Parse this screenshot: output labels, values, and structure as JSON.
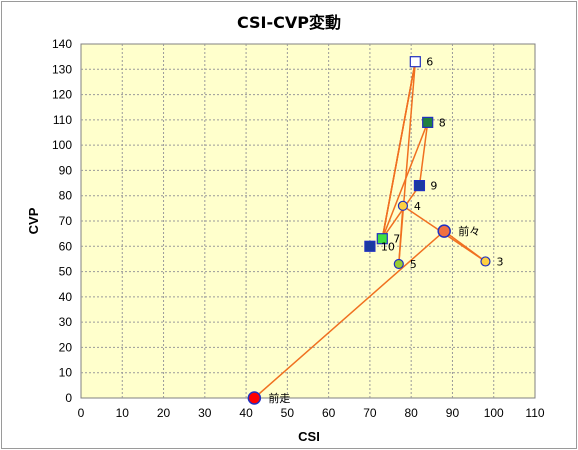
{
  "chart_data": {
    "type": "scatter",
    "title": "CSI-CVP変動",
    "xlabel": "CSI",
    "ylabel": "CVP",
    "xlim": [
      0,
      110
    ],
    "ylim": [
      0,
      140
    ],
    "x_ticks": [
      0,
      10,
      20,
      30,
      40,
      50,
      60,
      70,
      80,
      90,
      100,
      110
    ],
    "y_ticks": [
      0,
      10,
      20,
      30,
      40,
      50,
      60,
      70,
      80,
      90,
      100,
      110,
      120,
      130,
      140
    ],
    "grid": true,
    "plot_background": "#ffffcc",
    "line_color": "#f07020",
    "points": [
      {
        "label": "前走",
        "x": 42,
        "y": 0,
        "marker": "circle-large",
        "fill": "#ff0000",
        "stroke": "#2030c0"
      },
      {
        "label": "前々",
        "x": 88,
        "y": 66,
        "marker": "circle-large",
        "fill": "#f07040",
        "stroke": "#2030c0"
      },
      {
        "label": "3",
        "x": 98,
        "y": 54,
        "marker": "circle",
        "fill": "#ffd040",
        "stroke": "#2030c0"
      },
      {
        "label": "4",
        "x": 78,
        "y": 76,
        "marker": "circle",
        "fill": "#ffd040",
        "stroke": "#2030c0"
      },
      {
        "label": "5",
        "x": 77,
        "y": 53,
        "marker": "circle",
        "fill": "#9acd32",
        "stroke": "#2030c0"
      },
      {
        "label": "6",
        "x": 81,
        "y": 133,
        "marker": "square",
        "fill": "#ffffff",
        "stroke": "#2030c0"
      },
      {
        "label": "7",
        "x": 73,
        "y": 63,
        "marker": "square",
        "fill": "#40e040",
        "stroke": "#2030c0"
      },
      {
        "label": "8",
        "x": 84,
        "y": 109,
        "marker": "square",
        "fill": "#208040",
        "stroke": "#2030c0"
      },
      {
        "label": "9",
        "x": 82,
        "y": 84,
        "marker": "square",
        "fill": "#1a3aa0",
        "stroke": "#2030c0"
      },
      {
        "label": "10",
        "x": 70,
        "y": 60,
        "marker": "square",
        "fill": "#1a3aa0",
        "stroke": "#2030c0"
      }
    ],
    "path": [
      [
        42,
        0
      ],
      [
        88,
        66
      ],
      [
        98,
        54
      ],
      [
        78,
        76
      ],
      [
        77,
        53
      ],
      [
        81,
        133
      ],
      [
        73,
        63
      ],
      [
        84,
        109
      ],
      [
        82,
        84
      ],
      [
        73,
        63
      ],
      [
        81,
        133
      ],
      [
        73,
        63
      ]
    ]
  }
}
